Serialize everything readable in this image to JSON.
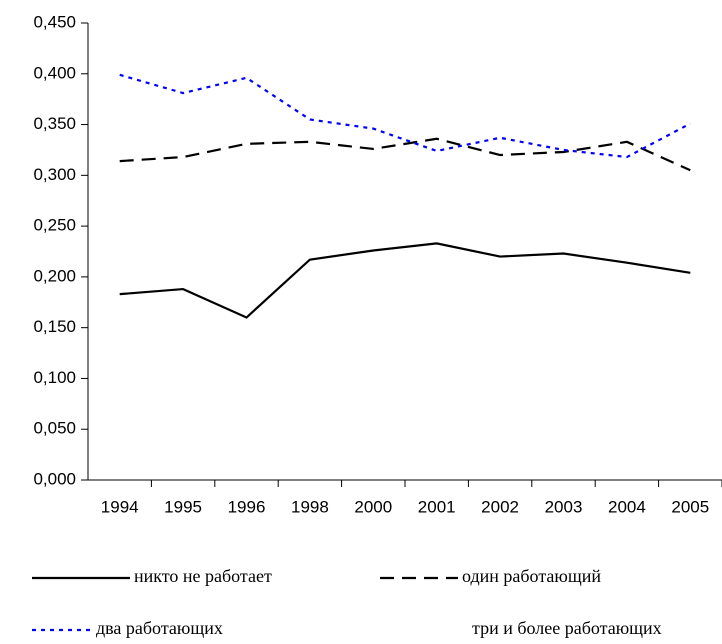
{
  "chart_data": {
    "type": "line",
    "categories": [
      "1994",
      "1995",
      "1996",
      "1998",
      "2000",
      "2001",
      "2002",
      "2003",
      "2004",
      "2005"
    ],
    "series": [
      {
        "name": "никто не работает",
        "color": "#000000",
        "dash": "solid",
        "values": [
          0.183,
          0.188,
          0.16,
          0.217,
          0.226,
          0.233,
          0.22,
          0.223,
          0.214,
          0.204
        ]
      },
      {
        "name": "один работающий",
        "color": "#000000",
        "dash": "dash",
        "values": [
          0.314,
          0.318,
          0.331,
          0.333,
          0.326,
          0.336,
          0.32,
          0.323,
          0.333,
          0.305
        ]
      },
      {
        "name": "два работающих",
        "color": "#0000ff",
        "dash": "dot",
        "values": [
          0.399,
          0.381,
          0.396,
          0.355,
          0.346,
          0.324,
          0.337,
          0.325,
          0.318,
          0.351
        ]
      },
      {
        "name": "три и более работающих",
        "color": "#ffffff",
        "dash": "solid",
        "values": [
          null,
          null,
          null,
          null,
          null,
          null,
          null,
          null,
          null,
          null
        ]
      }
    ],
    "ylim": [
      0,
      0.45
    ],
    "yticks": [
      {
        "value": 0,
        "label": "0,000"
      },
      {
        "value": 0.05,
        "label": "0,050"
      },
      {
        "value": 0.1,
        "label": "0,100"
      },
      {
        "value": 0.15,
        "label": "0,150"
      },
      {
        "value": 0.2,
        "label": "0,200"
      },
      {
        "value": 0.25,
        "label": "0,250"
      },
      {
        "value": 0.3,
        "label": "0,300"
      },
      {
        "value": 0.35,
        "label": "0,350"
      },
      {
        "value": 0.4,
        "label": "0,400"
      },
      {
        "value": 0.45,
        "label": "0,450"
      }
    ],
    "grid": false
  }
}
